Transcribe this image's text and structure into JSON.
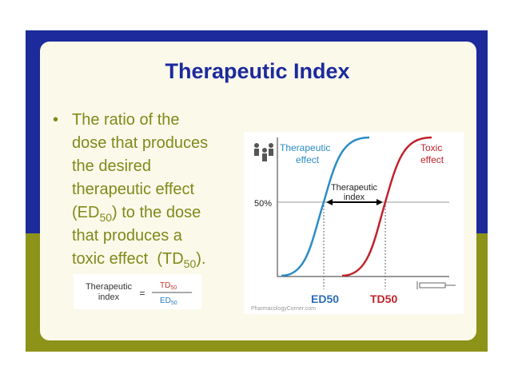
{
  "slide": {
    "title": "Therapeutic Index",
    "bullet": {
      "marker": "•",
      "lines": [
        "The ratio of the",
        "dose that produces",
        "the desired",
        "therapeutic effect"
      ],
      "line5": {
        "before": "(ED",
        "sub": "50",
        "after": ") to the dose"
      },
      "line6": "that produces a",
      "line7": {
        "before": "toxic effect  (TD",
        "sub": "50",
        "after": ")."
      }
    },
    "formula": {
      "left": [
        "Therapeutic",
        "index"
      ],
      "equals": "=",
      "numerator": "TD",
      "numerator_sub": "50",
      "denominator": "ED",
      "denominator_sub": "50"
    },
    "figure": {
      "therapeutic_label": [
        "Therapeutic",
        "effect"
      ],
      "toxic_label": [
        "Toxic",
        "effect"
      ],
      "index_label": [
        "Therapeutic",
        "index"
      ],
      "level": "50%",
      "ed": "ED50",
      "td": "TD50",
      "source": "PharmacologyCorner.com"
    }
  }
}
